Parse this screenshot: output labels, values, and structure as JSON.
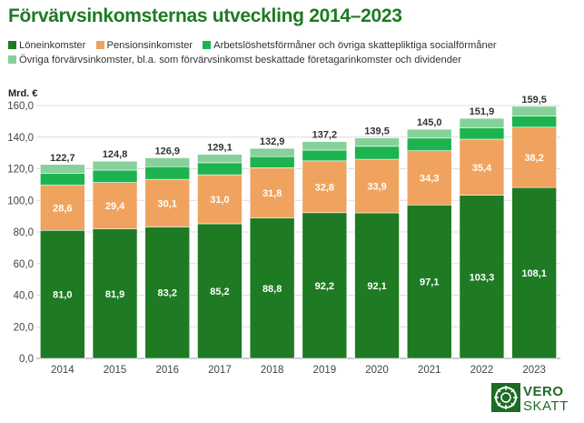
{
  "chart_data": {
    "type": "bar",
    "stacked": true,
    "title": "Förvärvsinkomsternas utveckling 2014–2023",
    "ylabel": "Mrd. €",
    "ylim": [
      0,
      160
    ],
    "yticks": [
      "0,0",
      "20,0",
      "40,0",
      "60,0",
      "80,0",
      "100,0",
      "120,0",
      "140,0",
      "160,0"
    ],
    "grid": true,
    "legend_position": "top",
    "categories": [
      "2014",
      "2015",
      "2016",
      "2017",
      "2018",
      "2019",
      "2020",
      "2021",
      "2022",
      "2023"
    ],
    "series": [
      {
        "name": "Löneinkomster",
        "color": "#1e7a23",
        "values": [
          81.0,
          81.9,
          83.2,
          85.2,
          88.8,
          92.2,
          92.1,
          97.1,
          103.3,
          108.1
        ],
        "labels": [
          "81,0",
          "81,9",
          "83,2",
          "85,2",
          "88,8",
          "92,2",
          "92,1",
          "97,1",
          "103,3",
          "108,1"
        ]
      },
      {
        "name": "Pensionsinkomster",
        "color": "#f0a35e",
        "values": [
          28.6,
          29.4,
          30.1,
          31.0,
          31.8,
          32.8,
          33.9,
          34.3,
          35.4,
          38.2
        ],
        "labels": [
          "28,6",
          "29,4",
          "30,1",
          "31,0",
          "31,8",
          "32,8",
          "33,9",
          "34,3",
          "35,4",
          "38,2"
        ]
      },
      {
        "name": "Arbetslöshetsförmåner och övriga skattepliktiga socialförmåner",
        "color": "#1db34e",
        "values": [
          7.4,
          7.8,
          8.0,
          7.6,
          7.1,
          6.8,
          8.2,
          8.0,
          7.1,
          7.0
        ]
      },
      {
        "name": "Övriga förvärvsinkomster, bl.a. som förvärvsinkomst beskattade företagarinkomster och dividender",
        "color": "#86d19a",
        "values": [
          5.7,
          5.7,
          5.6,
          5.3,
          5.2,
          5.4,
          5.3,
          5.6,
          6.1,
          6.2
        ]
      }
    ],
    "totals": [
      122.7,
      124.8,
      126.9,
      129.1,
      132.9,
      137.2,
      139.5,
      145.0,
      151.9,
      159.5
    ],
    "total_labels": [
      "122,7",
      "124,8",
      "126,9",
      "129,1",
      "132,9",
      "137,2",
      "139,5",
      "145,0",
      "151,9",
      "159,5"
    ]
  },
  "logo": {
    "top": "VERO",
    "bottom": "SKATT"
  }
}
